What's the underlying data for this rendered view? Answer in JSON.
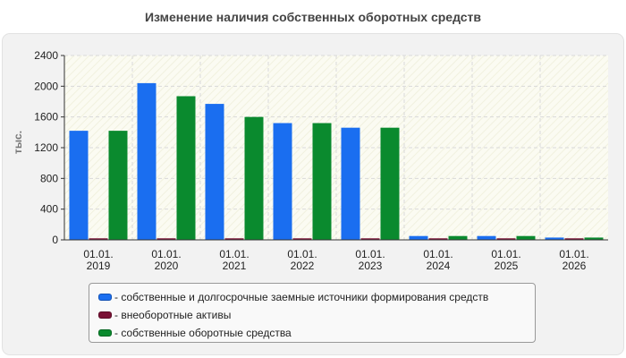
{
  "chart_data": {
    "type": "bar",
    "title": "Изменение наличия собственных оборотных средств",
    "ylabel": "тыс.",
    "xlabel": "",
    "ylim": [
      0,
      2400
    ],
    "yticks": [
      "0",
      "400",
      "800",
      "1200",
      "1600",
      "2000",
      "2400"
    ],
    "grid": true,
    "legend_position": "bottom",
    "categories": [
      [
        "01.01.",
        "2019"
      ],
      [
        "01.01.",
        "2020"
      ],
      [
        "01.01.",
        "2021"
      ],
      [
        "01.01.",
        "2022"
      ],
      [
        "01.01.",
        "2023"
      ],
      [
        "01.01.",
        "2024"
      ],
      [
        "01.01.",
        "2025"
      ],
      [
        "01.01.",
        "2026"
      ]
    ],
    "series": [
      {
        "name": "- собственные и долгосрочные заемные источники формирования средств",
        "color": "#1a6ef0",
        "values": [
          1420,
          2040,
          1770,
          1520,
          1460,
          50,
          50,
          30
        ]
      },
      {
        "name": "- внеоборотные активы",
        "color": "#7a1035",
        "values": [
          20,
          20,
          20,
          20,
          20,
          20,
          20,
          20
        ]
      },
      {
        "name": "- собственные оборотные средства",
        "color": "#0a8a2e",
        "values": [
          1420,
          1870,
          1600,
          1520,
          1460,
          50,
          50,
          30
        ]
      }
    ]
  }
}
